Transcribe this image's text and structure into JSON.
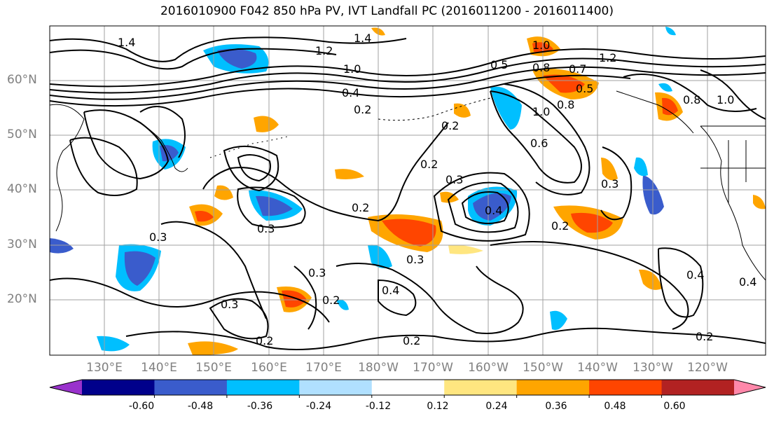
{
  "title": "2016010900 F042 850 hPa PV, IVT Landfall PC (2016011200 - 2016011400)",
  "lat_labels": [
    "60°N",
    "50°N",
    "40°N",
    "30°N",
    "20°N"
  ],
  "lon_labels": [
    "130°E",
    "140°E",
    "150°E",
    "160°E",
    "170°E",
    "180°W",
    "170°W",
    "160°W",
    "150°W",
    "140°W",
    "130°W",
    "120°W"
  ],
  "colorbar": {
    "tick_labels": [
      "-0.60",
      "-0.48",
      "-0.36",
      "-0.24",
      "-0.12",
      "0.12",
      "0.24",
      "0.36",
      "0.48",
      "0.60"
    ],
    "colors": [
      "#9932cc",
      "#00008b",
      "#3a5ccc",
      "#00bfff",
      "#b0e0ff",
      "#ffffff",
      "#ffe680",
      "#ffa500",
      "#ff4500",
      "#b22222",
      "#ff88aa"
    ]
  },
  "contour_labels": [
    "1.4",
    "1.4",
    "1.2",
    "1.0",
    "0.4",
    "0.2",
    "0.8",
    "0.5",
    "1.0",
    "1.2",
    "0.7",
    "0.8",
    "0.5",
    "1.0",
    "0.8",
    "0.6",
    "1.0",
    "0.2",
    "0.3",
    "0.2",
    "0.3",
    "0.4",
    "0.2",
    "0.3",
    "0.3",
    "0.3",
    "0.3",
    "0.4",
    "0.3",
    "0.2",
    "0.2",
    "0.2",
    "0.2",
    "0.4",
    "0.4",
    "0.2"
  ]
}
